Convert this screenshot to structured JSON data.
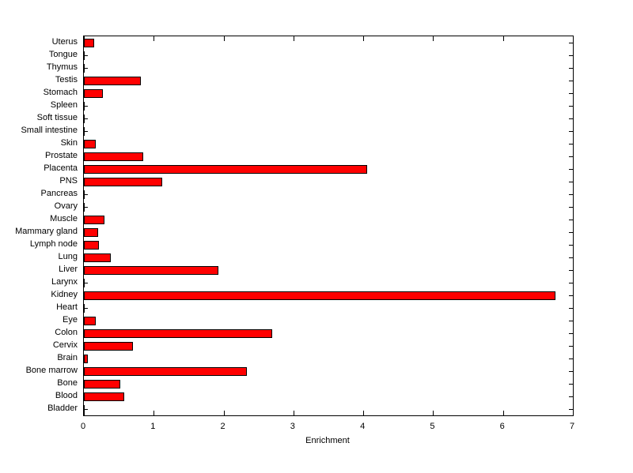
{
  "chart_data": {
    "type": "bar",
    "orientation": "horizontal",
    "title": "",
    "xlabel": "Enrichment",
    "ylabel": "",
    "xlim": [
      0,
      7
    ],
    "xticks": [
      0,
      1,
      2,
      3,
      4,
      5,
      6,
      7
    ],
    "grid": false,
    "legend": "none",
    "bar_color": "#ff0000",
    "bar_edge_color": "#000000",
    "categories_top_to_bottom": [
      "Uterus",
      "Tongue",
      "Thymus",
      "Testis",
      "Stomach",
      "Spleen",
      "Soft tissue",
      "Small intestine",
      "Skin",
      "Prostate",
      "Placenta",
      "PNS",
      "Pancreas",
      "Ovary",
      "Muscle",
      "Mammary gland",
      "Lymph node",
      "Lung",
      "Liver",
      "Larynx",
      "Kidney",
      "Heart",
      "Eye",
      "Colon",
      "Cervix",
      "Brain",
      "Bone marrow",
      "Bone",
      "Blood",
      "Bladder"
    ],
    "values_top_to_bottom": [
      0.15,
      0,
      0,
      0.82,
      0.27,
      0,
      0,
      0,
      0.17,
      0.85,
      4.05,
      1.12,
      0,
      0,
      0.3,
      0.2,
      0.22,
      0.38,
      1.93,
      0,
      6.75,
      0,
      0.17,
      2.7,
      0.7,
      0.06,
      2.33,
      0.52,
      0.58,
      0
    ]
  }
}
